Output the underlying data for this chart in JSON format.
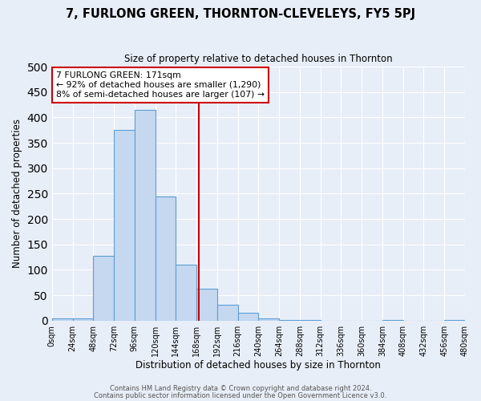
{
  "title": "7, FURLONG GREEN, THORNTON-CLEVELEYS, FY5 5PJ",
  "subtitle": "Size of property relative to detached houses in Thornton",
  "xlabel": "Distribution of detached houses by size in Thornton",
  "ylabel": "Number of detached properties",
  "bin_edges": [
    0,
    24,
    48,
    72,
    96,
    120,
    144,
    168,
    192,
    216,
    240,
    264,
    288,
    312,
    336,
    360,
    384,
    408,
    432,
    456,
    480
  ],
  "bar_heights": [
    5,
    5,
    128,
    376,
    415,
    245,
    110,
    63,
    32,
    15,
    5,
    2,
    2,
    0,
    0,
    0,
    1,
    0,
    0,
    1
  ],
  "bar_color": "#c5d8f0",
  "bar_edge_color": "#5a9fd4",
  "bg_color": "#e8eef8",
  "grid_color": "#ffffff",
  "vline_x": 171,
  "vline_color": "#cc0000",
  "ylim": [
    0,
    500
  ],
  "annotation_title": "7 FURLONG GREEN: 171sqm",
  "annotation_line1": "← 92% of detached houses are smaller (1,290)",
  "annotation_line2": "8% of semi-detached houses are larger (107) →",
  "annotation_box_color": "#ffffff",
  "annotation_box_edge": "#cc0000",
  "footer_line1": "Contains HM Land Registry data © Crown copyright and database right 2024.",
  "footer_line2": "Contains public sector information licensed under the Open Government Licence v3.0.",
  "tick_labels": [
    "0sqm",
    "24sqm",
    "48sqm",
    "72sqm",
    "96sqm",
    "120sqm",
    "144sqm",
    "168sqm",
    "192sqm",
    "216sqm",
    "240sqm",
    "264sqm",
    "288sqm",
    "312sqm",
    "336sqm",
    "360sqm",
    "384sqm",
    "408sqm",
    "432sqm",
    "456sqm",
    "480sqm"
  ],
  "yticks": [
    0,
    50,
    100,
    150,
    200,
    250,
    300,
    350,
    400,
    450,
    500
  ]
}
